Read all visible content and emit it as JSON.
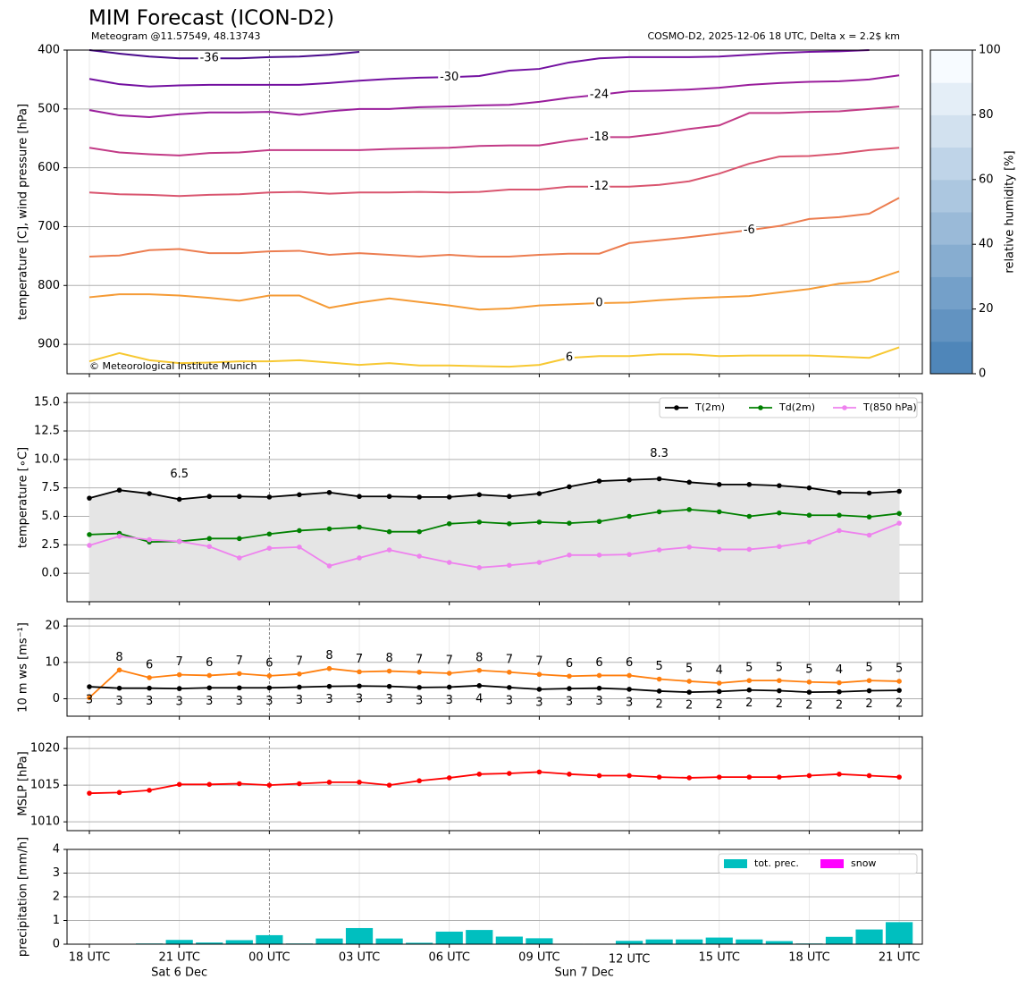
{
  "chart_data": [
    {
      "type": "line",
      "title": "MIM Forecast (ICON-D2)",
      "subtitle": "Meteogram @11.57549, 48.13743",
      "note": "COSMO-D2, 2025-12-06 18 UTC, Delta x = 2.2$ km",
      "annotation": "© Meteorological Institute Munich",
      "ylabel": "temperature [C], wind pressure [hPa]",
      "ylim": [
        950,
        400
      ],
      "yticks": [
        400,
        500,
        600,
        700,
        800,
        900
      ],
      "grid": true,
      "series": [
        {
          "name": "-36",
          "color": "#4a0a8c",
          "values": [
            400,
            406,
            411,
            414,
            414,
            414,
            412,
            411,
            408,
            403,
            null,
            null,
            null,
            null,
            null,
            null,
            null,
            null,
            null,
            null,
            null,
            null,
            null,
            null,
            null,
            null,
            null,
            null
          ]
        },
        {
          "name": "-30",
          "color": "#7310a0",
          "values": [
            449,
            458,
            462,
            460,
            459,
            459,
            459,
            459,
            456,
            452,
            449,
            447,
            446,
            444,
            435,
            432,
            421,
            414,
            412,
            412,
            412,
            411,
            408,
            405,
            403,
            402,
            400,
            null
          ]
        },
        {
          "name": "-24",
          "color": "#9a1e9c",
          "values": [
            502,
            511,
            514,
            509,
            506,
            506,
            505,
            510,
            504,
            500,
            500,
            497,
            496,
            494,
            493,
            488,
            481,
            476,
            470,
            469,
            467,
            464,
            459,
            456,
            454,
            453,
            450,
            443
          ]
        },
        {
          "name": "-18",
          "color": "#c23a86",
          "values": [
            566,
            574,
            577,
            579,
            575,
            574,
            570,
            570,
            570,
            570,
            568,
            567,
            566,
            563,
            562,
            562,
            554,
            548,
            548,
            542,
            534,
            528,
            507,
            507,
            505,
            504,
            500,
            496
          ]
        },
        {
          "name": "-12",
          "color": "#d9556f",
          "values": [
            642,
            645,
            646,
            648,
            646,
            645,
            642,
            641,
            644,
            642,
            642,
            641,
            642,
            641,
            637,
            637,
            632,
            632,
            632,
            629,
            623,
            610,
            593,
            581,
            580,
            576,
            570,
            566
          ]
        },
        {
          "name": "-6",
          "color": "#ec7d50",
          "values": [
            751,
            749,
            740,
            738,
            745,
            745,
            742,
            741,
            748,
            745,
            748,
            751,
            748,
            751,
            751,
            748,
            746,
            746,
            728,
            723,
            718,
            712,
            706,
            699,
            687,
            684,
            678,
            651
          ]
        },
        {
          "name": "0",
          "color": "#f59b36",
          "values": [
            820,
            815,
            815,
            817,
            821,
            826,
            817,
            817,
            838,
            829,
            822,
            828,
            834,
            841,
            839,
            834,
            832,
            830,
            829,
            825,
            822,
            820,
            818,
            812,
            806,
            797,
            793,
            776
          ]
        },
        {
          "name": "6",
          "color": "#f7c832",
          "values": [
            929,
            915,
            927,
            932,
            931,
            929,
            929,
            927,
            931,
            935,
            932,
            936,
            936,
            937,
            938,
            935,
            923,
            920,
            920,
            917,
            917,
            920,
            919,
            919,
            919,
            921,
            923,
            905
          ]
        }
      ],
      "clabel": "relative humidity [%]",
      "clim": [
        0,
        100
      ],
      "cticks": [
        0,
        20,
        40,
        60,
        80,
        100
      ]
    },
    {
      "type": "line",
      "ylabel": "temperature [∘C]",
      "ylim": [
        -2.5,
        15.8
      ],
      "yticks": [
        {
          "value": 0,
          "label": "0.0"
        },
        {
          "value": 2.5,
          "label": "2.5"
        },
        {
          "value": 5,
          "label": "5.0"
        },
        {
          "value": 7.5,
          "label": "7.5"
        },
        {
          "value": 10,
          "label": "10.0"
        },
        {
          "value": 12.5,
          "label": "12.5"
        },
        {
          "value": 15,
          "label": "15.0"
        }
      ],
      "grid": true,
      "legend": "upper right",
      "series": [
        {
          "name": "T(2m)",
          "color": "#000000",
          "fill_color": "#e5e5e5",
          "values": [
            6.6,
            7.3,
            7.0,
            6.5,
            6.75,
            6.75,
            6.7,
            6.9,
            7.1,
            6.75,
            6.75,
            6.7,
            6.7,
            6.9,
            6.75,
            7.0,
            7.6,
            8.1,
            8.2,
            8.3,
            8.0,
            7.8,
            7.8,
            7.7,
            7.5,
            7.1,
            7.05,
            7.2
          ],
          "value_labels": [
            null,
            null,
            null,
            "6.5",
            null,
            null,
            null,
            null,
            null,
            null,
            null,
            null,
            null,
            null,
            null,
            null,
            null,
            null,
            null,
            "8.3",
            null,
            null,
            null,
            null,
            null,
            null,
            null,
            null
          ]
        },
        {
          "name": "Td(2m)",
          "color": "#008000",
          "values": [
            3.4,
            3.5,
            2.75,
            2.8,
            3.05,
            3.05,
            3.45,
            3.75,
            3.9,
            4.05,
            3.65,
            3.65,
            4.35,
            4.5,
            4.35,
            4.5,
            4.4,
            4.55,
            5.0,
            5.4,
            5.6,
            5.4,
            5.0,
            5.3,
            5.1,
            5.1,
            4.95,
            5.25
          ]
        },
        {
          "name": "T(850 hPa)",
          "color": "#ee82ee",
          "values": [
            2.45,
            3.25,
            2.95,
            2.8,
            2.35,
            1.35,
            2.2,
            2.3,
            0.65,
            1.35,
            2.05,
            1.5,
            0.95,
            0.5,
            0.7,
            0.95,
            1.6,
            1.6,
            1.65,
            2.05,
            2.3,
            2.1,
            2.1,
            2.35,
            2.75,
            3.75,
            3.35,
            4.4
          ]
        }
      ]
    },
    {
      "type": "line",
      "ylabel": "10 m ws [ms⁻¹]",
      "ylim": [
        -4.8,
        22
      ],
      "yticks": [
        0,
        10,
        20
      ],
      "grid": true,
      "series": [
        {
          "color": "#ff7f0e",
          "values": [
            0.3,
            7.9,
            5.8,
            6.6,
            6.4,
            6.9,
            6.3,
            6.8,
            8.3,
            7.4,
            7.6,
            7.3,
            7.0,
            7.8,
            7.3,
            6.7,
            6.2,
            6.4,
            6.4,
            5.4,
            4.8,
            4.3,
            5.0,
            5.0,
            4.6,
            4.4,
            5.0,
            4.8
          ],
          "value_labels": [
            null,
            "8",
            "6",
            "7",
            "6",
            "7",
            "6",
            "7",
            "8",
            "7",
            "8",
            "7",
            "7",
            "8",
            "7",
            "7",
            "6",
            "6",
            "6",
            "5",
            "5",
            "4",
            "5",
            "5",
            "5",
            "4",
            "5",
            "5"
          ]
        },
        {
          "color": "#000000",
          "values": [
            3.3,
            2.9,
            2.9,
            2.8,
            3.0,
            3.0,
            3.0,
            3.2,
            3.4,
            3.5,
            3.4,
            3.1,
            3.2,
            3.6,
            3.1,
            2.6,
            2.8,
            2.9,
            2.6,
            2.1,
            1.8,
            2.0,
            2.4,
            2.2,
            1.8,
            1.9,
            2.2,
            2.3
          ],
          "value_labels": [
            "3",
            "3",
            "3",
            "3",
            "3",
            "3",
            "3",
            "3",
            "3",
            "3",
            "3",
            "3",
            "3",
            "4",
            "3",
            "3",
            "3",
            "3",
            "3",
            "2",
            "2",
            "2",
            "2",
            "2",
            "2",
            "2",
            "2",
            "2"
          ]
        }
      ]
    },
    {
      "type": "line",
      "ylabel": "MSLP [hPa]",
      "ylim": [
        1008.8,
        1021.6
      ],
      "yticks": [
        1010,
        1015,
        1020
      ],
      "grid": true,
      "series": [
        {
          "color": "#ff0000",
          "values": [
            1013.9,
            1014.0,
            1014.3,
            1015.1,
            1015.1,
            1015.2,
            1015.0,
            1015.2,
            1015.4,
            1015.4,
            1015.0,
            1015.6,
            1016.0,
            1016.5,
            1016.6,
            1016.8,
            1016.5,
            1016.3,
            1016.3,
            1016.1,
            1016.0,
            1016.1,
            1016.1,
            1016.1,
            1016.3,
            1016.5,
            1016.3,
            1016.1
          ]
        }
      ]
    },
    {
      "type": "bar",
      "ylabel": "precipitation [mm/h]",
      "ylim": [
        0,
        4
      ],
      "yticks": [
        0,
        1,
        2,
        3,
        4
      ],
      "grid": true,
      "legend": "upper right",
      "categories": [
        "18 UTC",
        null,
        null,
        "21 UTC",
        null,
        null,
        "00 UTC",
        null,
        null,
        "03 UTC",
        null,
        null,
        "06 UTC",
        null,
        null,
        "09 UTC",
        null,
        null,
        "12 UTC",
        null,
        null,
        "15 UTC",
        null,
        null,
        "18 UTC",
        null,
        null,
        "21 UTC"
      ],
      "x_sublabels": [
        null,
        null,
        null,
        "Sat 6 Dec",
        null,
        null,
        null,
        null,
        null,
        null,
        null,
        null,
        null,
        null,
        null,
        null,
        "Sun 7 Dec",
        null,
        null,
        null,
        null,
        null,
        null,
        null,
        null,
        null,
        null,
        null
      ],
      "series": [
        {
          "name": "tot. prec.",
          "color": "#00bfbf",
          "values": [
            0,
            0,
            0.03,
            0.18,
            0.07,
            0.17,
            0.38,
            0.03,
            0.24,
            0.68,
            0.24,
            0.06,
            0.53,
            0.6,
            0.32,
            0.25,
            0.02,
            0.02,
            0.14,
            0.2,
            0.2,
            0.28,
            0.2,
            0.13,
            0.03,
            0.31,
            0.62,
            0.93
          ]
        },
        {
          "name": "snow",
          "color": "#ff00ff",
          "values": [
            0,
            0,
            0,
            0,
            0,
            0,
            0,
            0,
            0,
            0,
            0,
            0,
            0,
            0,
            0,
            0,
            0,
            0,
            0,
            0,
            0,
            0,
            0,
            0,
            0,
            0,
            0,
            0
          ]
        }
      ]
    }
  ]
}
